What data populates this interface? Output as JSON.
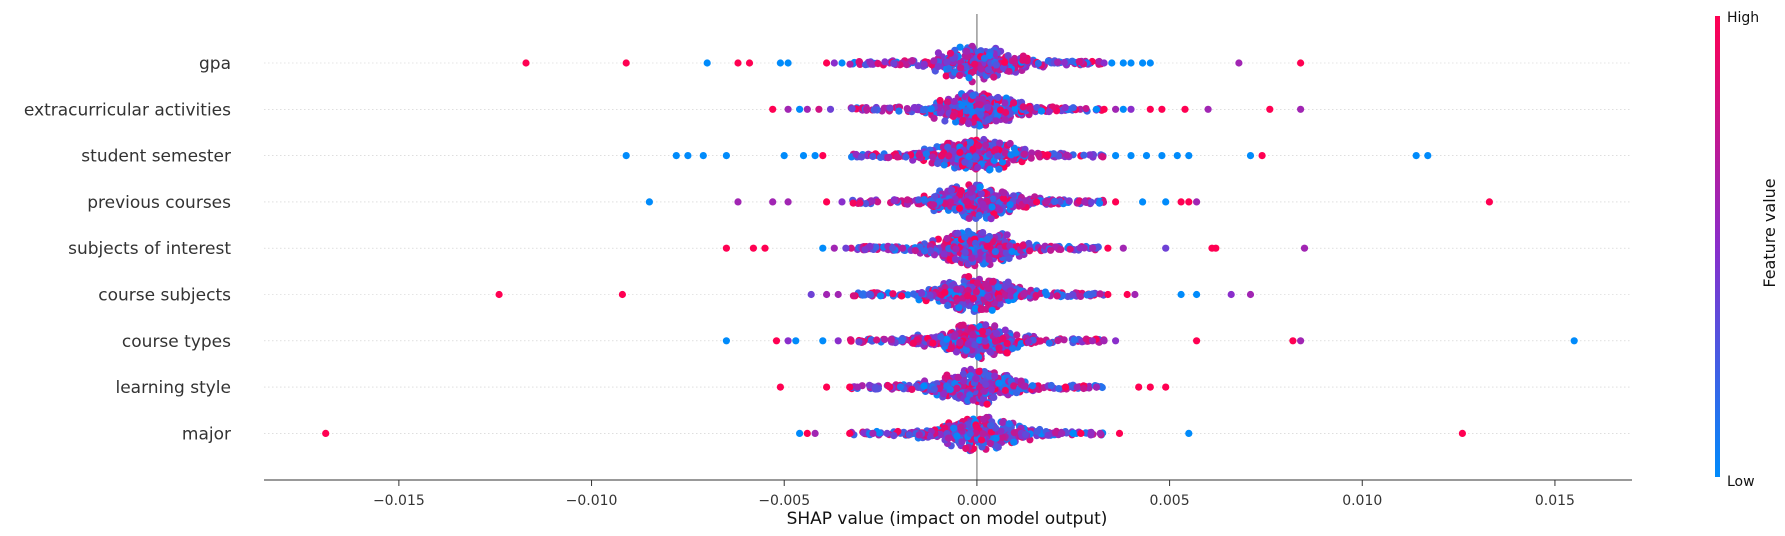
{
  "chart_data": {
    "type": "scatter",
    "subtype": "beeswarm",
    "xlabel": "SHAP value (impact on model output)",
    "xlim": [
      -0.0185,
      0.017
    ],
    "x_ticks": [
      -0.015,
      -0.01,
      -0.005,
      0.0,
      0.005,
      0.01,
      0.015
    ],
    "x_tick_labels": [
      "−0.015",
      "−0.010",
      "−0.005",
      "0.000",
      "0.005",
      "0.010",
      "0.015"
    ],
    "colorbar": {
      "title": "Feature value",
      "high_label": "High",
      "low_label": "Low",
      "high_color": "#ff0052",
      "low_color": "#008bfb"
    },
    "grid": false,
    "features": [
      {
        "name": "gpa",
        "outliers": [
          [
            -0.0117,
            1
          ],
          [
            -0.0091,
            1
          ],
          [
            -0.007,
            0
          ],
          [
            -0.0062,
            1
          ],
          [
            -0.0059,
            1
          ],
          [
            -0.0051,
            0
          ],
          [
            -0.0049,
            0
          ],
          [
            -0.0039,
            1
          ],
          [
            -0.0037,
            0.5
          ],
          [
            -0.0035,
            0
          ],
          [
            0.0033,
            0.5
          ],
          [
            0.0035,
            0
          ],
          [
            0.0038,
            0
          ],
          [
            0.004,
            0
          ],
          [
            0.0043,
            0
          ],
          [
            0.0045,
            0
          ],
          [
            0.0068,
            0.6
          ],
          [
            0.0084,
            1
          ]
        ]
      },
      {
        "name": "extracurricular activities",
        "outliers": [
          [
            -0.0053,
            1
          ],
          [
            -0.0049,
            0.6
          ],
          [
            -0.0046,
            0
          ],
          [
            -0.0044,
            0.6
          ],
          [
            -0.0041,
            0.8
          ],
          [
            -0.0038,
            0.4
          ],
          [
            0.0031,
            0
          ],
          [
            0.0033,
            1
          ],
          [
            0.0036,
            0.6
          ],
          [
            0.0038,
            0
          ],
          [
            0.004,
            0.5
          ],
          [
            0.0045,
            1
          ],
          [
            0.0048,
            1
          ],
          [
            0.0054,
            1
          ],
          [
            0.006,
            0.6
          ],
          [
            0.0076,
            1
          ],
          [
            0.0084,
            0.6
          ]
        ]
      },
      {
        "name": "student semester",
        "outliers": [
          [
            -0.0091,
            0
          ],
          [
            -0.0078,
            0
          ],
          [
            -0.0075,
            0
          ],
          [
            -0.0071,
            0
          ],
          [
            -0.0065,
            0
          ],
          [
            -0.005,
            0
          ],
          [
            -0.0045,
            0
          ],
          [
            -0.0042,
            0
          ],
          [
            -0.004,
            1
          ],
          [
            0.0036,
            0
          ],
          [
            0.004,
            0
          ],
          [
            0.0044,
            0
          ],
          [
            0.0048,
            0
          ],
          [
            0.0052,
            0
          ],
          [
            0.0055,
            0
          ],
          [
            0.0071,
            0
          ],
          [
            0.0074,
            1
          ],
          [
            0.0114,
            0
          ],
          [
            0.0117,
            0
          ]
        ]
      },
      {
        "name": "previous courses",
        "outliers": [
          [
            -0.0085,
            0
          ],
          [
            -0.0062,
            0.6
          ],
          [
            -0.0053,
            0.6
          ],
          [
            -0.0049,
            0.6
          ],
          [
            -0.0039,
            1
          ],
          [
            -0.0035,
            0.5
          ],
          [
            0.0028,
            0.6
          ],
          [
            0.0036,
            1
          ],
          [
            0.0043,
            0
          ],
          [
            0.0049,
            0
          ],
          [
            0.0053,
            1
          ],
          [
            0.0055,
            1
          ],
          [
            0.0057,
            0.6
          ],
          [
            0.0133,
            1
          ]
        ]
      },
      {
        "name": "subjects of interest",
        "outliers": [
          [
            -0.0065,
            1
          ],
          [
            -0.0058,
            1
          ],
          [
            -0.0055,
            1
          ],
          [
            -0.004,
            0
          ],
          [
            -0.0037,
            0.6
          ],
          [
            -0.0034,
            0.4
          ],
          [
            0.003,
            0.6
          ],
          [
            0.0034,
            1
          ],
          [
            0.0038,
            0.6
          ],
          [
            0.0049,
            0.4
          ],
          [
            0.0061,
            1
          ],
          [
            0.0062,
            1
          ],
          [
            0.0085,
            0.6
          ]
        ]
      },
      {
        "name": "course subjects",
        "outliers": [
          [
            -0.0124,
            1
          ],
          [
            -0.0092,
            1
          ],
          [
            -0.0043,
            0.4
          ],
          [
            -0.0039,
            0.6
          ],
          [
            -0.0036,
            0.6
          ],
          [
            0.0034,
            1
          ],
          [
            0.0039,
            1
          ],
          [
            0.0041,
            0.6
          ],
          [
            0.0053,
            0
          ],
          [
            0.0057,
            0
          ],
          [
            0.0066,
            0.5
          ],
          [
            0.0071,
            0.6
          ]
        ]
      },
      {
        "name": "course types",
        "outliers": [
          [
            -0.0065,
            0
          ],
          [
            -0.0052,
            1
          ],
          [
            -0.0049,
            0.5
          ],
          [
            -0.0047,
            0
          ],
          [
            -0.004,
            0
          ],
          [
            -0.0036,
            0.5
          ],
          [
            0.003,
            0.6
          ],
          [
            0.0033,
            0.6
          ],
          [
            0.0036,
            0.5
          ],
          [
            0.0057,
            1
          ],
          [
            0.0082,
            1
          ],
          [
            0.0084,
            0.6
          ],
          [
            0.0155,
            0
          ]
        ]
      },
      {
        "name": "learning style",
        "outliers": [
          [
            -0.0051,
            1
          ],
          [
            -0.0039,
            1
          ],
          [
            -0.0033,
            1
          ],
          [
            -0.0031,
            0.6
          ],
          [
            0.0023,
            1
          ],
          [
            0.0026,
            0.6
          ],
          [
            0.0031,
            0.6
          ],
          [
            0.0042,
            1
          ],
          [
            0.0045,
            1
          ],
          [
            0.0049,
            1
          ]
        ]
      },
      {
        "name": "major",
        "outliers": [
          [
            -0.0169,
            1
          ],
          [
            -0.0046,
            0
          ],
          [
            -0.0044,
            1
          ],
          [
            -0.0042,
            0.6
          ],
          [
            -0.0033,
            1
          ],
          [
            -0.0027,
            0.6
          ],
          [
            0.0022,
            0.6
          ],
          [
            0.0025,
            0
          ],
          [
            0.0027,
            1
          ],
          [
            0.0032,
            0.6
          ],
          [
            0.0037,
            1
          ],
          [
            0.0055,
            0
          ],
          [
            0.0126,
            1
          ]
        ]
      }
    ]
  }
}
